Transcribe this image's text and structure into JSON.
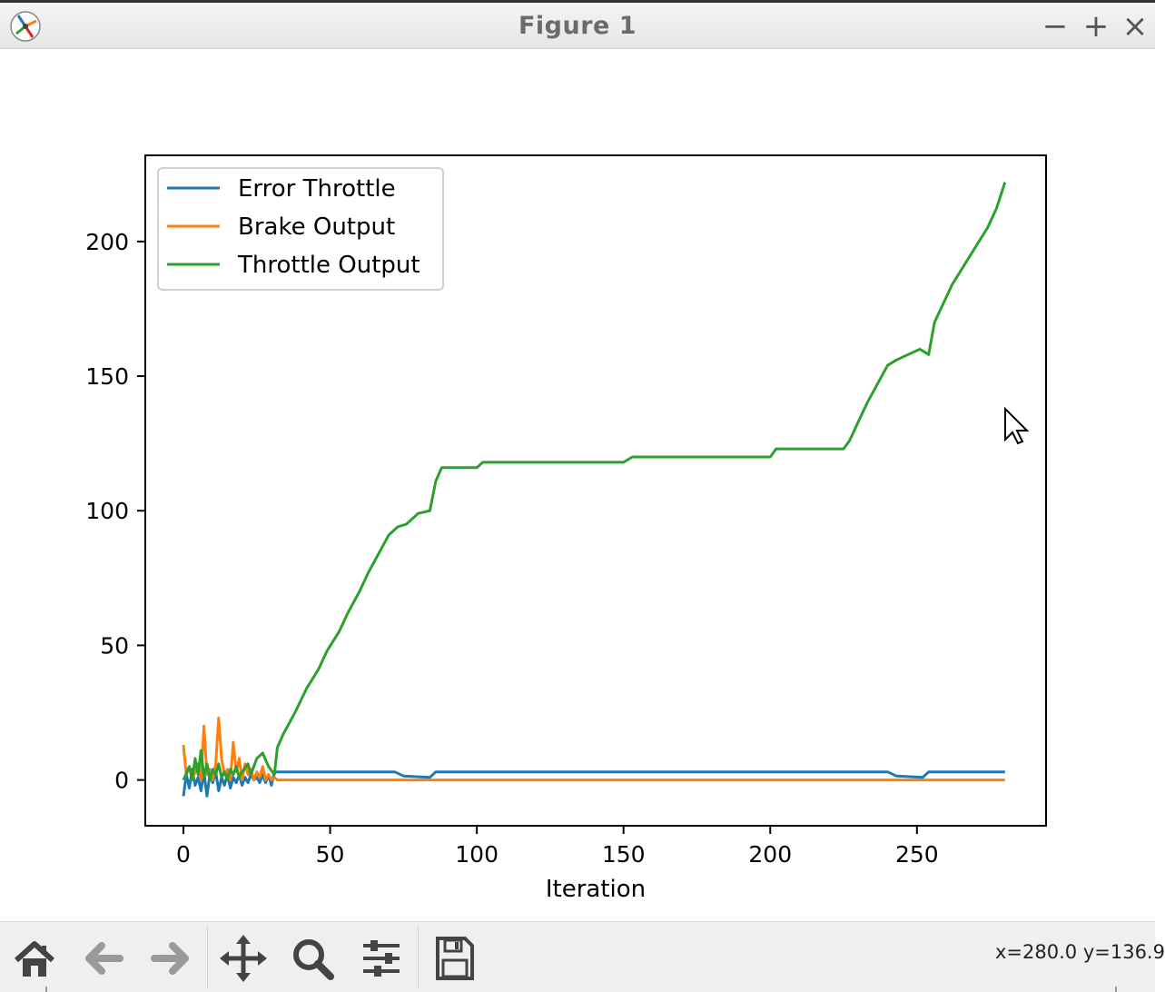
{
  "window": {
    "title": "Figure 1",
    "minimize_label": "−",
    "maximize_label": "+",
    "close_label": "×"
  },
  "toolbar": {
    "buttons": [
      "home-icon",
      "back-arrow-icon",
      "forward-arrow-icon",
      "pan-icon",
      "zoom-icon",
      "configure-subplots-icon",
      "save-icon"
    ]
  },
  "status": {
    "coords": "x=280.0 y=136.9"
  },
  "colors": {
    "error_throttle": "#1f77b4",
    "brake_output": "#ff7f0e",
    "throttle_output": "#2ca02c"
  },
  "chart_data": {
    "type": "line",
    "title": "",
    "xlabel": "Iteration",
    "ylabel": "",
    "xlim": [
      -13,
      294
    ],
    "ylim": [
      -17,
      232
    ],
    "xticks": [
      0,
      50,
      100,
      150,
      200,
      250
    ],
    "yticks": [
      0,
      50,
      100,
      150,
      200
    ],
    "grid": false,
    "legend_position": "upper-left",
    "series": [
      {
        "name": "Error Throttle",
        "color": "#1f77b4",
        "points": [
          [
            0,
            -6
          ],
          [
            1,
            2
          ],
          [
            2,
            -3
          ],
          [
            3,
            4
          ],
          [
            4,
            -2
          ],
          [
            5,
            1
          ],
          [
            6,
            -4
          ],
          [
            7,
            3
          ],
          [
            8,
            -6
          ],
          [
            9,
            2
          ],
          [
            10,
            -1
          ],
          [
            11,
            3
          ],
          [
            12,
            -4
          ],
          [
            13,
            1
          ],
          [
            14,
            -2
          ],
          [
            15,
            2
          ],
          [
            16,
            -3
          ],
          [
            17,
            1
          ],
          [
            18,
            -1
          ],
          [
            19,
            2
          ],
          [
            20,
            -2
          ],
          [
            21,
            1
          ],
          [
            22,
            -1
          ],
          [
            23,
            2
          ],
          [
            24,
            0
          ],
          [
            25,
            1
          ],
          [
            26,
            -1
          ],
          [
            27,
            2
          ],
          [
            28,
            -1
          ],
          [
            29,
            2
          ],
          [
            30,
            -2
          ],
          [
            31,
            3
          ],
          [
            40,
            3
          ],
          [
            60,
            3
          ],
          [
            72,
            3
          ],
          [
            75,
            1.5
          ],
          [
            84,
            1
          ],
          [
            86,
            3
          ],
          [
            120,
            3
          ],
          [
            160,
            3
          ],
          [
            200,
            3
          ],
          [
            240,
            3
          ],
          [
            243,
            1.5
          ],
          [
            252,
            1
          ],
          [
            254,
            3
          ],
          [
            280,
            3
          ]
        ]
      },
      {
        "name": "Brake Output",
        "color": "#ff7f0e",
        "points": [
          [
            0,
            13
          ],
          [
            1,
            2
          ],
          [
            2,
            5
          ],
          [
            3,
            0
          ],
          [
            4,
            3
          ],
          [
            5,
            6
          ],
          [
            6,
            0
          ],
          [
            7,
            20
          ],
          [
            8,
            2
          ],
          [
            9,
            4
          ],
          [
            10,
            0
          ],
          [
            11,
            6
          ],
          [
            12,
            23
          ],
          [
            13,
            8
          ],
          [
            14,
            2
          ],
          [
            15,
            4
          ],
          [
            16,
            0
          ],
          [
            17,
            14
          ],
          [
            18,
            3
          ],
          [
            19,
            8
          ],
          [
            20,
            0
          ],
          [
            21,
            6
          ],
          [
            22,
            2
          ],
          [
            23,
            4
          ],
          [
            24,
            0
          ],
          [
            25,
            3
          ],
          [
            26,
            1
          ],
          [
            27,
            5
          ],
          [
            28,
            0
          ],
          [
            29,
            2
          ],
          [
            30,
            0
          ],
          [
            31,
            1
          ],
          [
            32,
            0
          ],
          [
            60,
            0
          ],
          [
            100,
            0
          ],
          [
            150,
            0
          ],
          [
            200,
            0
          ],
          [
            250,
            0
          ],
          [
            280,
            0
          ]
        ]
      },
      {
        "name": "Throttle Output",
        "color": "#2ca02c",
        "points": [
          [
            0,
            0
          ],
          [
            2,
            5
          ],
          [
            3,
            0
          ],
          [
            4,
            8
          ],
          [
            5,
            2
          ],
          [
            6,
            11
          ],
          [
            7,
            1
          ],
          [
            8,
            6
          ],
          [
            9,
            0
          ],
          [
            10,
            4
          ],
          [
            11,
            2
          ],
          [
            12,
            6
          ],
          [
            13,
            1
          ],
          [
            14,
            3
          ],
          [
            15,
            0
          ],
          [
            16,
            4
          ],
          [
            17,
            2
          ],
          [
            18,
            5
          ],
          [
            19,
            1
          ],
          [
            20,
            3
          ],
          [
            22,
            6
          ],
          [
            23,
            2
          ],
          [
            25,
            8
          ],
          [
            27,
            10
          ],
          [
            29,
            5
          ],
          [
            31,
            2
          ],
          [
            32,
            12
          ],
          [
            34,
            17
          ],
          [
            38,
            25
          ],
          [
            42,
            34
          ],
          [
            46,
            41
          ],
          [
            49,
            48
          ],
          [
            53,
            55
          ],
          [
            56,
            62
          ],
          [
            60,
            70
          ],
          [
            63,
            77
          ],
          [
            67,
            85
          ],
          [
            70,
            91
          ],
          [
            73,
            94
          ],
          [
            76,
            95
          ],
          [
            80,
            99
          ],
          [
            84,
            100
          ],
          [
            86,
            111
          ],
          [
            88,
            116
          ],
          [
            100,
            116
          ],
          [
            102,
            118
          ],
          [
            150,
            118
          ],
          [
            153,
            120
          ],
          [
            200,
            120
          ],
          [
            202,
            123
          ],
          [
            225,
            123
          ],
          [
            227,
            126
          ],
          [
            230,
            133
          ],
          [
            233,
            140
          ],
          [
            237,
            148
          ],
          [
            240,
            154
          ],
          [
            243,
            156
          ],
          [
            247,
            158
          ],
          [
            251,
            160
          ],
          [
            254,
            158
          ],
          [
            256,
            170
          ],
          [
            259,
            177
          ],
          [
            262,
            184
          ],
          [
            266,
            191
          ],
          [
            270,
            198
          ],
          [
            274,
            205
          ],
          [
            277,
            212
          ],
          [
            280,
            222
          ]
        ]
      }
    ]
  }
}
